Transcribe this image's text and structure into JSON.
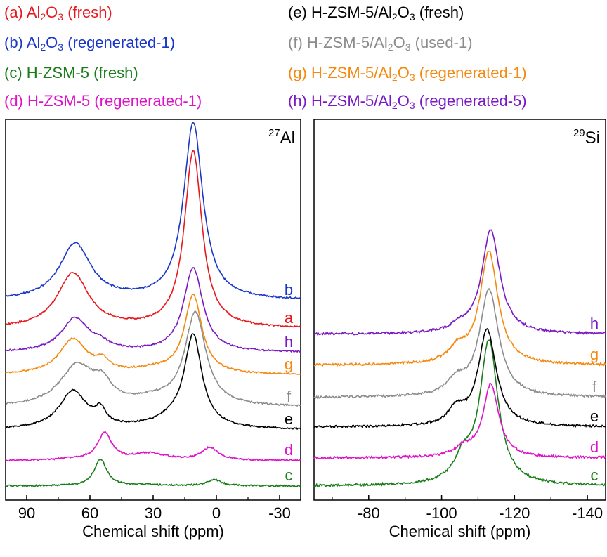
{
  "legend": [
    {
      "letter": "(a)",
      "pre": "Al",
      "s1": "2",
      "mid": "O",
      "s2": "3",
      "post": " (fresh)",
      "color": "#e8171d"
    },
    {
      "letter": "(b)",
      "pre": "Al",
      "s1": "2",
      "mid": "O",
      "s2": "3",
      "post": " (regenerated-1)",
      "color": "#1936c9"
    },
    {
      "letter": "(c)",
      "pre": "H-ZSM-5 (fresh)",
      "s1": "",
      "mid": "",
      "s2": "",
      "post": "",
      "color": "#1a7d1a"
    },
    {
      "letter": "(d)",
      "pre": "H-ZSM-5 (regenerated-1)",
      "s1": "",
      "mid": "",
      "s2": "",
      "post": "",
      "color": "#e012c8"
    },
    {
      "letter": "(e)",
      "pre": "H-ZSM-5/Al",
      "s1": "2",
      "mid": "O",
      "s2": "3",
      "post": " (fresh)",
      "color": "#000000"
    },
    {
      "letter": "(f)",
      "pre": "H-ZSM-5/Al",
      "s1": "2",
      "mid": "O",
      "s2": "3",
      "post": " (used-1)",
      "color": "#8c8c8c"
    },
    {
      "letter": "(g)",
      "pre": "H-ZSM-5/Al",
      "s1": "2",
      "mid": "O",
      "s2": "3",
      "post": " (regenerated-1)",
      "color": "#f5890f"
    },
    {
      "letter": "(h)",
      "pre": "H-ZSM-5/Al",
      "s1": "2",
      "mid": "O",
      "s2": "3",
      "post": " (regenerated-5)",
      "color": "#7a19c4"
    }
  ],
  "chart_data": [
    {
      "type": "line",
      "nucleus_mass": "27",
      "nucleus_symbol": "Al",
      "xlabel": "Chemical shift (ppm)",
      "x_reversed": true,
      "xlim": [
        100,
        -40
      ],
      "xticks": [
        90,
        60,
        30,
        0,
        -30
      ],
      "xtick_labels": [
        "90",
        "60",
        "30",
        "0",
        "-30"
      ],
      "y_axis_shown": false,
      "grid": false,
      "stacked_offset_spectra": true,
      "series": [
        {
          "label": "c",
          "color": "#1a7d1a",
          "offset": 0.0,
          "peaks": [
            {
              "x": 55,
              "height": 0.95,
              "width": 3.5
            },
            {
              "x": 1,
              "height": 0.22,
              "width": 4
            },
            {
              "x": 35,
              "height": 0.04,
              "width": 15
            }
          ]
        },
        {
          "label": "d",
          "color": "#e012c8",
          "offset": 0.9,
          "peaks": [
            {
              "x": 53,
              "height": 0.95,
              "width": 4
            },
            {
              "x": 32,
              "height": 0.25,
              "width": 10
            },
            {
              "x": 3,
              "height": 0.45,
              "width": 5
            },
            {
              "x": 68,
              "height": 0.06,
              "width": 8
            }
          ]
        },
        {
          "label": "e",
          "color": "#000000",
          "offset": 2.0,
          "peaks": [
            {
              "x": 11,
              "height": 3.2,
              "width": 5
            },
            {
              "x": 68,
              "height": 1.35,
              "width": 8
            },
            {
              "x": 55,
              "height": 0.5,
              "width": 3
            },
            {
              "x": 20,
              "height": 0.3,
              "width": 12
            }
          ]
        },
        {
          "label": "f",
          "color": "#8c8c8c",
          "offset": 2.8,
          "peaks": [
            {
              "x": 10,
              "height": 3.3,
              "width": 6
            },
            {
              "x": 66,
              "height": 1.45,
              "width": 10
            },
            {
              "x": 54,
              "height": 0.6,
              "width": 5
            },
            {
              "x": 30,
              "height": 0.2,
              "width": 12
            }
          ]
        },
        {
          "label": "g",
          "color": "#f5890f",
          "offset": 3.95,
          "peaks": [
            {
              "x": 11,
              "height": 2.8,
              "width": 5
            },
            {
              "x": 68,
              "height": 1.25,
              "width": 8
            },
            {
              "x": 54,
              "height": 0.35,
              "width": 4
            },
            {
              "x": 30,
              "height": 0.15,
              "width": 12
            }
          ]
        },
        {
          "label": "h",
          "color": "#7a19c4",
          "offset": 4.75,
          "peaks": [
            {
              "x": 11,
              "height": 3.0,
              "width": 5.5
            },
            {
              "x": 67,
              "height": 1.2,
              "width": 8
            },
            {
              "x": 55,
              "height": 0.2,
              "width": 5
            }
          ]
        },
        {
          "label": "a",
          "color": "#e8171d",
          "offset": 5.6,
          "peaks": [
            {
              "x": 11,
              "height": 6.3,
              "width": 5
            },
            {
              "x": 68,
              "height": 1.95,
              "width": 9
            }
          ]
        },
        {
          "label": "b",
          "color": "#1936c9",
          "offset": 6.6,
          "peaks": [
            {
              "x": 11,
              "height": 6.3,
              "width": 5.5
            },
            {
              "x": 67,
              "height": 2.0,
              "width": 9
            }
          ]
        }
      ]
    },
    {
      "type": "line",
      "nucleus_mass": "29",
      "nucleus_symbol": "Si",
      "xlabel": "Chemical shift (ppm)",
      "x_reversed": true,
      "xlim": [
        -65,
        -145
      ],
      "xticks": [
        -80,
        -100,
        -120,
        -140
      ],
      "xtick_labels": [
        "-80",
        "-100",
        "-120",
        "-140"
      ],
      "y_axis_shown": false,
      "grid": false,
      "stacked_offset_spectra": true,
      "series": [
        {
          "label": "c",
          "color": "#1a7d1a",
          "offset": 0.0,
          "peaks": [
            {
              "x": -113,
              "height": 5.1,
              "width": 3.0
            },
            {
              "x": -106,
              "height": 0.8,
              "width": 3.0
            }
          ]
        },
        {
          "label": "d",
          "color": "#e012c8",
          "offset": 1.0,
          "peaks": [
            {
              "x": -113.5,
              "height": 2.6,
              "width": 2.6
            },
            {
              "x": -106,
              "height": 0.3,
              "width": 3.0
            }
          ]
        },
        {
          "label": "e",
          "color": "#000000",
          "offset": 2.1,
          "peaks": [
            {
              "x": -112.5,
              "height": 3.45,
              "width": 3.0
            },
            {
              "x": -104,
              "height": 0.55,
              "width": 2.5
            }
          ]
        },
        {
          "label": "f",
          "color": "#8c8c8c",
          "offset": 3.15,
          "peaks": [
            {
              "x": -113,
              "height": 3.8,
              "width": 3.2
            },
            {
              "x": -104,
              "height": 0.5,
              "width": 3.0
            }
          ]
        },
        {
          "label": "g",
          "color": "#f5890f",
          "offset": 4.3,
          "peaks": [
            {
              "x": -113,
              "height": 4.0,
              "width": 3.0
            },
            {
              "x": -104.5,
              "height": 0.5,
              "width": 3.0
            }
          ]
        },
        {
          "label": "h",
          "color": "#7a19c4",
          "offset": 5.4,
          "peaks": [
            {
              "x": -113.5,
              "height": 3.7,
              "width": 3.0
            },
            {
              "x": -105,
              "height": 0.2,
              "width": 3.0
            }
          ]
        }
      ]
    }
  ]
}
